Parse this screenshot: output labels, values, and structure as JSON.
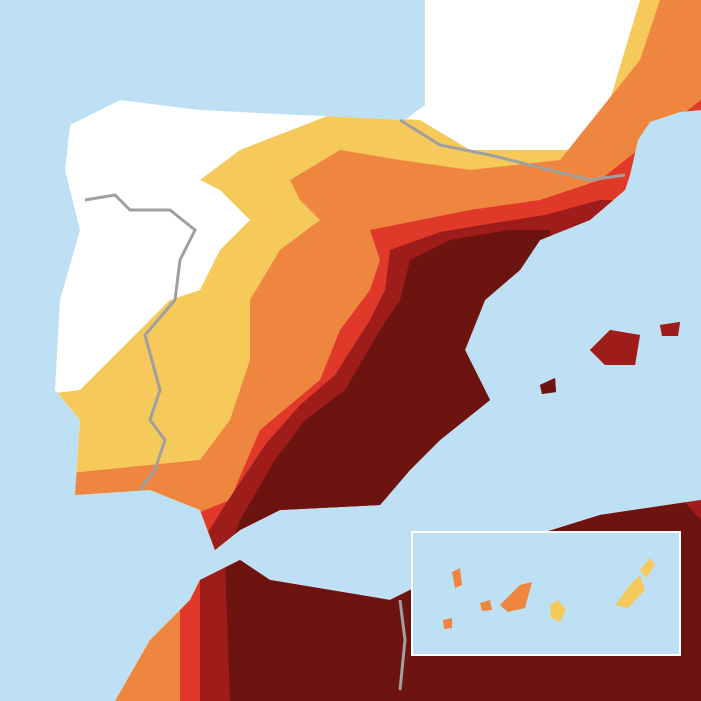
{
  "map": {
    "palette": {
      "sea": "#bde0f5",
      "none": "#ffffff",
      "low": "#f5c95a",
      "medium": "#ee8640",
      "high": "#e0392a",
      "very-high": "#9e1c1a",
      "extreme": "#6e1410",
      "border": "#a0a0a0"
    }
  }
}
